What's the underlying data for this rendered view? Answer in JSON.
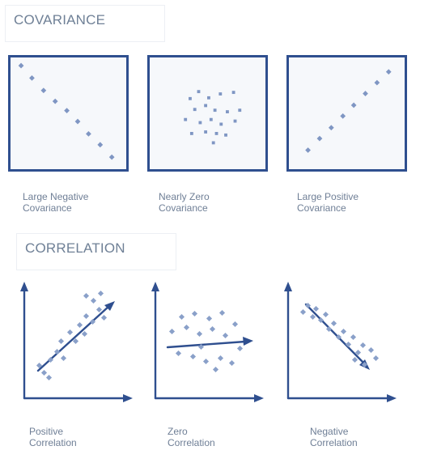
{
  "covariance": {
    "title": "COVARIANCE",
    "panels": [
      {
        "caption_line1": "Large Negative",
        "caption_line2": "Covariance"
      },
      {
        "caption_line1": "Nearly Zero",
        "caption_line2": "Covariance"
      },
      {
        "caption_line1": "Large Positive",
        "caption_line2": "Covariance"
      }
    ]
  },
  "correlation": {
    "title": "CORRELATION",
    "panels": [
      {
        "caption_line1": "Positive",
        "caption_line2": "Correlation"
      },
      {
        "caption_line1": "Zero",
        "caption_line2": "Correlation"
      },
      {
        "caption_line1": "Negative",
        "caption_line2": "Correlation"
      }
    ]
  },
  "colors": {
    "frame": "#2f4f8f",
    "dot": "#7f96c3",
    "axis": "#2f4f8f",
    "text": "#6f7f96",
    "title": "#6f8096"
  }
}
